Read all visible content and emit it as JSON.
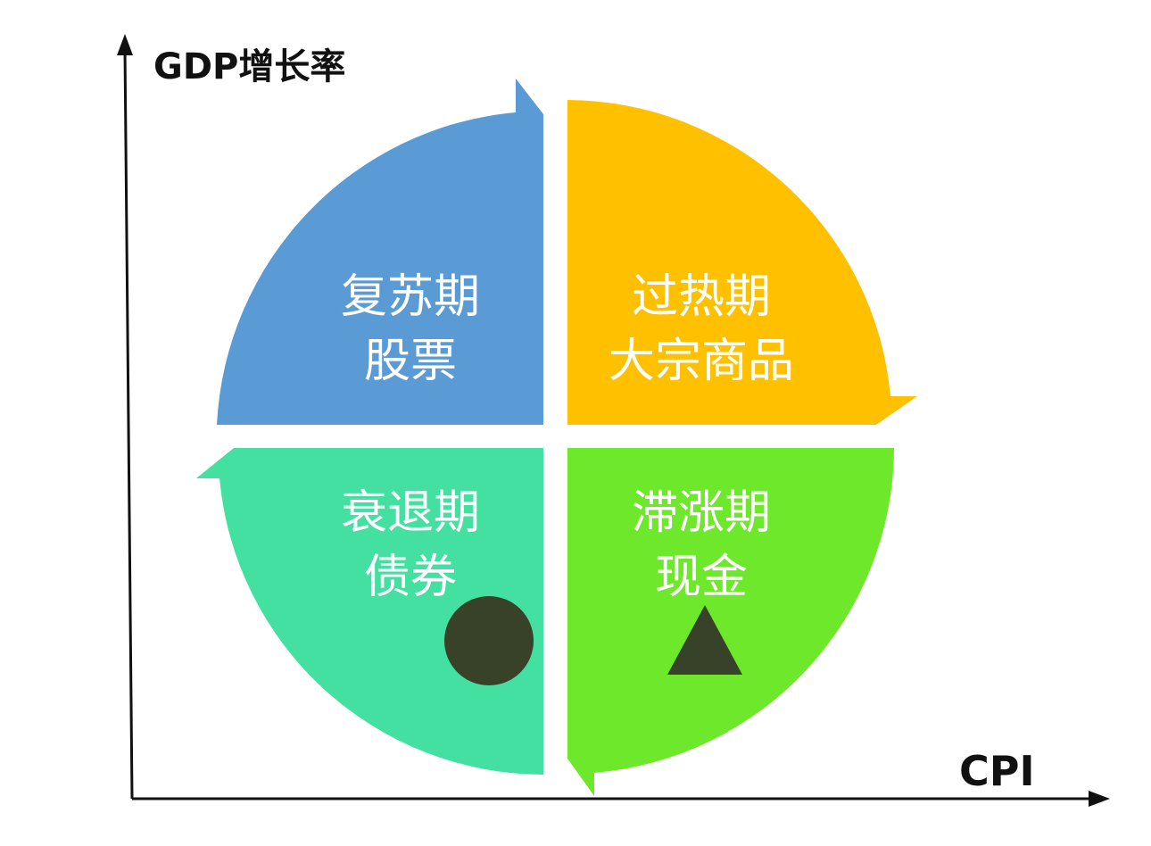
{
  "axes": {
    "y_label": "GDP增长率",
    "x_label": "CPI"
  },
  "quadrants": {
    "recovery": {
      "phase": "复苏期",
      "asset": "股票",
      "color": "#5b9bd5"
    },
    "overheat": {
      "phase": "过热期",
      "asset": "大宗商品",
      "color": "#ffc000"
    },
    "recession": {
      "phase": "衰退期",
      "asset": "债券",
      "color": "#44e0a2"
    },
    "stagflation": {
      "phase": "滞涨期",
      "asset": "现金",
      "color": "#6ee82a"
    }
  },
  "markers": {
    "circle": {
      "quadrant": "recession",
      "shape": "circle",
      "color": "#374228"
    },
    "triangle": {
      "quadrant": "stagflation",
      "shape": "triangle",
      "color": "#374228"
    }
  }
}
